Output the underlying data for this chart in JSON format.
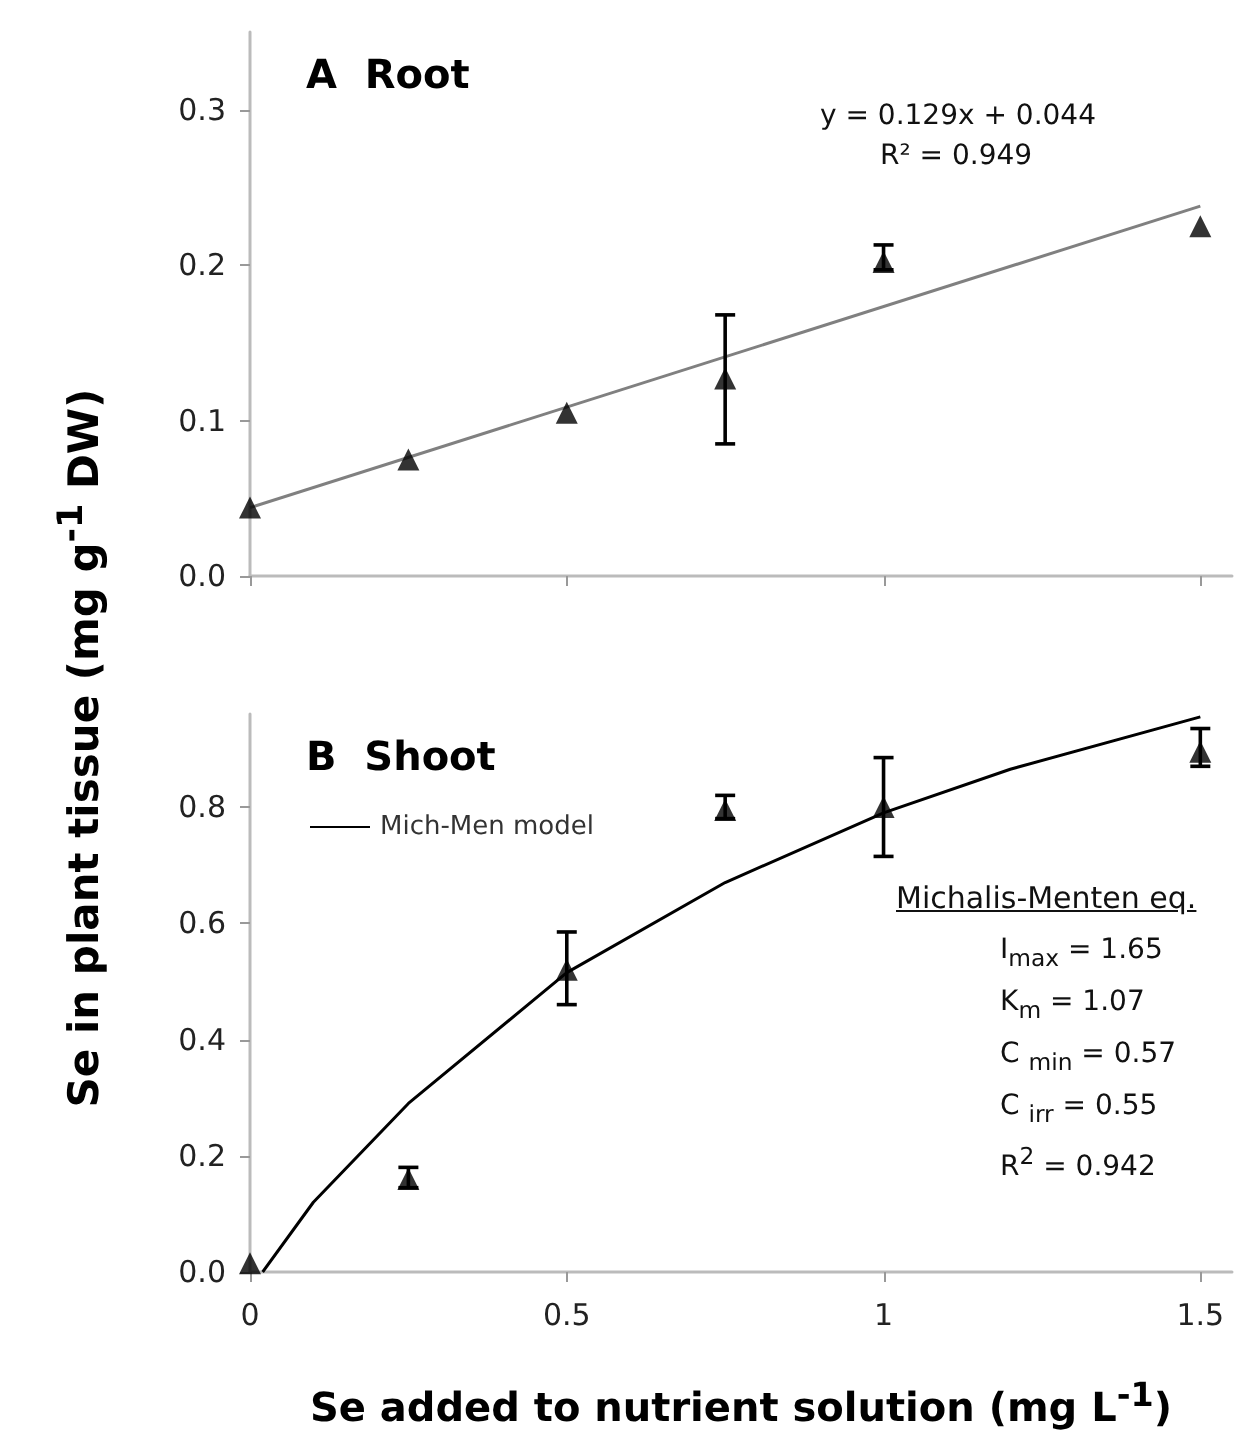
{
  "chart_data": [
    {
      "type": "scatter",
      "title": "A  Root",
      "ylabel": "Se in plant tissue (mg g$^{-1}$ DW)",
      "tick_labels": "y",
      "grid": false,
      "legend": false,
      "xlim": [
        0,
        1.55
      ],
      "xticks": [
        0,
        0.5,
        1,
        1.5
      ],
      "ylim": [
        0,
        0.35
      ],
      "yticks": [
        {
          "value": 0,
          "label": "0.0"
        },
        0.1,
        0.2,
        0.3
      ],
      "annotations": [
        "y = 0.129x + 0.044",
        "R² = 0.949"
      ],
      "series": [
        {
          "marker": "triangle",
          "color": "#000000",
          "x": [
            0,
            0.25,
            0.5,
            0.75,
            1,
            1.5
          ],
          "values": [
            0.044,
            0.075,
            0.105,
            0.127,
            0.202,
            0.225
          ],
          "errors": [
            null,
            null,
            null,
            [
              0.085,
              0.168
            ],
            [
              0.197,
              0.213
            ],
            null
          ]
        },
        {
          "type": "line",
          "marker": "none",
          "color": "#808080",
          "x": [
            0,
            1.5
          ],
          "values": [
            0.044,
            0.238
          ]
        }
      ]
    },
    {
      "type": "scatter",
      "title": "B  Shoot",
      "xlabel": "Se added to nutrient solution (mg L$^{-1}$)",
      "grid": false,
      "legend": "top left",
      "xlim": [
        0,
        1.55
      ],
      "xticks": [
        0,
        0.5,
        1,
        1.5
      ],
      "ylim": [
        0,
        0.96
      ],
      "yticks": [
        {
          "value": 0,
          "label": "0.0"
        },
        0.2,
        0.4,
        0.6,
        0.8
      ],
      "annotations": [
        "Michalis-Menten eq.",
        "I$_{max}$ = 1.65",
        "K$_{m}$ = 1.07",
        "C $_{min}$ = 0.57",
        "C $_{irr}$ = 0.55",
        "R$^{2}$ = 0.942"
      ],
      "series": [
        {
          "marker": "triangle",
          "color": "#000000",
          "x": [
            0,
            0.25,
            0.5,
            0.75,
            1,
            1.5
          ],
          "values": [
            0.015,
            0.16,
            0.52,
            0.795,
            0.8,
            0.895
          ],
          "errors": [
            null,
            [
              0.145,
              0.18
            ],
            [
              0.46,
              0.585
            ],
            [
              0.78,
              0.82
            ],
            [
              0.715,
              0.885
            ],
            [
              0.87,
              0.935
            ]
          ]
        },
        {
          "type": "line",
          "marker": "none",
          "name": "Mich-Men model",
          "color": "#000000",
          "x": [
            0.02,
            0.1,
            0.25,
            0.5,
            0.75,
            1,
            1.2,
            1.5
          ],
          "values": [
            0,
            0.12,
            0.29,
            0.515,
            0.67,
            0.79,
            0.865,
            0.955
          ]
        }
      ]
    }
  ]
}
